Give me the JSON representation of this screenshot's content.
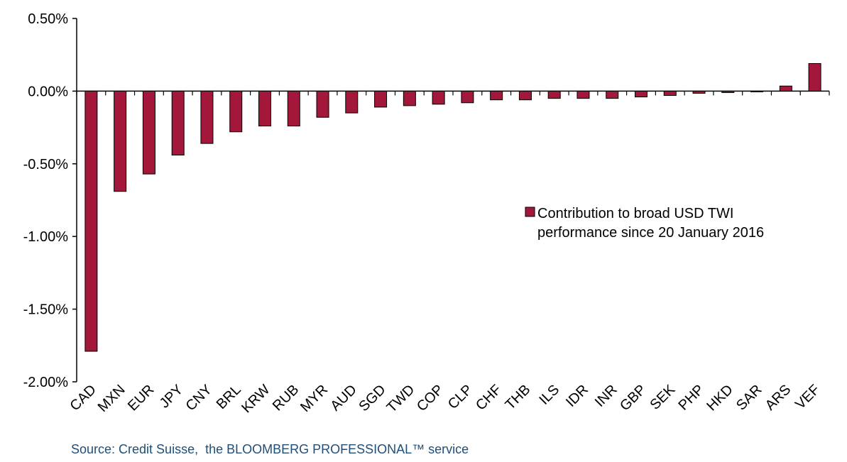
{
  "chart_data": {
    "type": "bar",
    "categories": [
      "CAD",
      "MXN",
      "EUR",
      "JPY",
      "CNY",
      "BRL",
      "KRW",
      "RUB",
      "MYR",
      "AUD",
      "SGD",
      "TWD",
      "COP",
      "CLP",
      "CHF",
      "THB",
      "ILS",
      "IDR",
      "INR",
      "GBP",
      "SEK",
      "PHP",
      "HKD",
      "SAR",
      "ARS",
      "VEF"
    ],
    "series": [
      {
        "name": "Contribution to broad USD TWI performance since 20 January 2016",
        "values": [
          -1.79,
          -0.69,
          -0.57,
          -0.44,
          -0.36,
          -0.28,
          -0.24,
          -0.24,
          -0.18,
          -0.15,
          -0.11,
          -0.1,
          -0.09,
          -0.08,
          -0.06,
          -0.06,
          -0.05,
          -0.05,
          -0.05,
          -0.04,
          -0.03,
          -0.015,
          -0.01,
          -0.005,
          0.035,
          0.19
        ]
      }
    ],
    "yticks": [
      "0.50%",
      "0.00%",
      "-0.50%",
      "-1.00%",
      "-1.50%",
      "-2.00%"
    ],
    "ylim": [
      -2.0,
      0.5
    ],
    "legend_lines": [
      "Contribution to broad USD TWI",
      "performance since 20 January 2016"
    ],
    "legend_position": "right",
    "grid": false,
    "colors": {
      "bar": "#a3173a",
      "outline": "#000000"
    }
  },
  "source": "Source: Credit Suisse,  the BLOOMBERG PROFESSIONAL™ service"
}
